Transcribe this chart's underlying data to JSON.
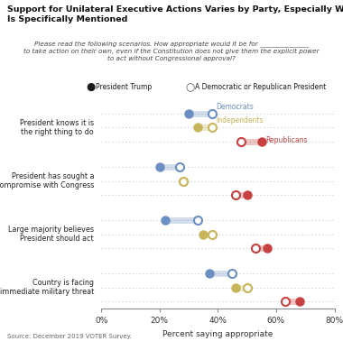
{
  "title": "Support for Unilateral Executive Actions Varies by Party, Especially When Trump\nIs Specifically Mentioned",
  "subtitle": "Please read the following scenarios. How appropriate would it be for _______________\nto take action on their own, even if the Constitution does not give them the explicit power\nto act without Congressional approval?",
  "legend": [
    "President Trump",
    "A Democratic or Republican President"
  ],
  "scenarios": [
    "President knows it is\nthe right thing to do",
    "President has sought a\ncompromise with Congress",
    "Large majority believes\nPresident should act",
    "Country is facing\nimmediate military threat"
  ],
  "data": {
    "Democrats": {
      "trump": [
        30,
        20,
        22,
        37
      ],
      "other": [
        38,
        27,
        33,
        45
      ]
    },
    "Independents": {
      "trump": [
        33,
        28,
        35,
        46
      ],
      "other": [
        38,
        28,
        38,
        50
      ]
    },
    "Republicans": {
      "trump": [
        55,
        50,
        57,
        68
      ],
      "other": [
        48,
        46,
        53,
        63
      ]
    }
  },
  "colors": {
    "Democrats": "#6b8fc2",
    "Independents": "#c8b55a",
    "Republicans": "#c94040"
  },
  "party_labels": {
    "Democrats": "Democrats",
    "Independents": "Independents",
    "Republicans": "Republicans"
  },
  "source": "Source: December 2019 VOTER Survey.",
  "xlim": [
    0,
    80
  ],
  "xticks": [
    0,
    20,
    40,
    60,
    80
  ],
  "xlabel": "Percent saying appropriate",
  "background_color": "#ffffff"
}
